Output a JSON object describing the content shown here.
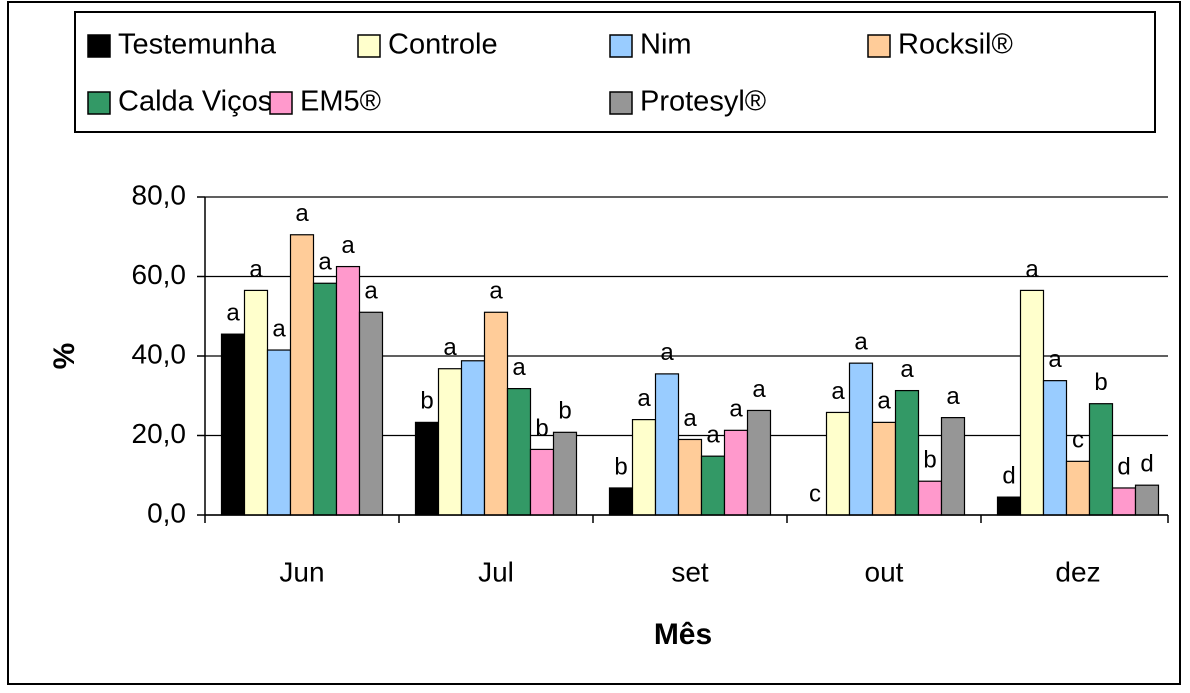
{
  "chart_data": {
    "type": "bar",
    "categories": [
      "Jun",
      "Jul",
      "set",
      "out",
      "dez"
    ],
    "series": [
      {
        "name": "Testemunha",
        "color": "#000000",
        "values": [
          45.5,
          23.3,
          6.8,
          0,
          4.5
        ],
        "letters": [
          "a",
          "b",
          "b",
          "c",
          "d"
        ]
      },
      {
        "name": "Controle",
        "color": "#ffffcc",
        "values": [
          56.5,
          36.8,
          24,
          25.8,
          56.5
        ],
        "letters": [
          "a",
          "a",
          "a",
          "a",
          "a"
        ]
      },
      {
        "name": "Nim",
        "color": "#99ccff",
        "values": [
          41.5,
          38.8,
          35.5,
          38.2,
          33.8
        ],
        "letters": [
          "a",
          null,
          "a",
          "a",
          "a"
        ]
      },
      {
        "name": "Rocksil®",
        "color": "#ffcc99",
        "values": [
          70.5,
          51,
          19,
          23.3,
          13.5
        ],
        "letters": [
          "a",
          "a",
          "a",
          "a",
          "c"
        ]
      },
      {
        "name": "Calda Viçosa",
        "color": "#339966",
        "values": [
          58.3,
          31.8,
          14.8,
          31.3,
          28
        ],
        "letters": [
          "a",
          "a",
          "a",
          "a",
          "b"
        ]
      },
      {
        "name": "EM5®",
        "color": "#ff99cc",
        "values": [
          62.5,
          16.5,
          21.3,
          8.5,
          6.8
        ],
        "letters": [
          "a",
          "b",
          "a",
          "b",
          "d"
        ]
      },
      {
        "name": "Protesyl®",
        "color": "#969696",
        "values": [
          51,
          20.8,
          26.3,
          24.5,
          7.5
        ],
        "letters": [
          "a",
          "b",
          "a",
          "a",
          "d"
        ]
      }
    ],
    "ylim": [
      0,
      80
    ],
    "yticks": [
      {
        "value": 0,
        "label": "0,0"
      },
      {
        "value": 20,
        "label": "20,0"
      },
      {
        "value": 40,
        "label": "40,0"
      },
      {
        "value": 60,
        "label": "60,0"
      },
      {
        "value": 80,
        "label": "80,0"
      }
    ],
    "xlabel": "Mês",
    "ylabel": "%",
    "grid": true
  }
}
